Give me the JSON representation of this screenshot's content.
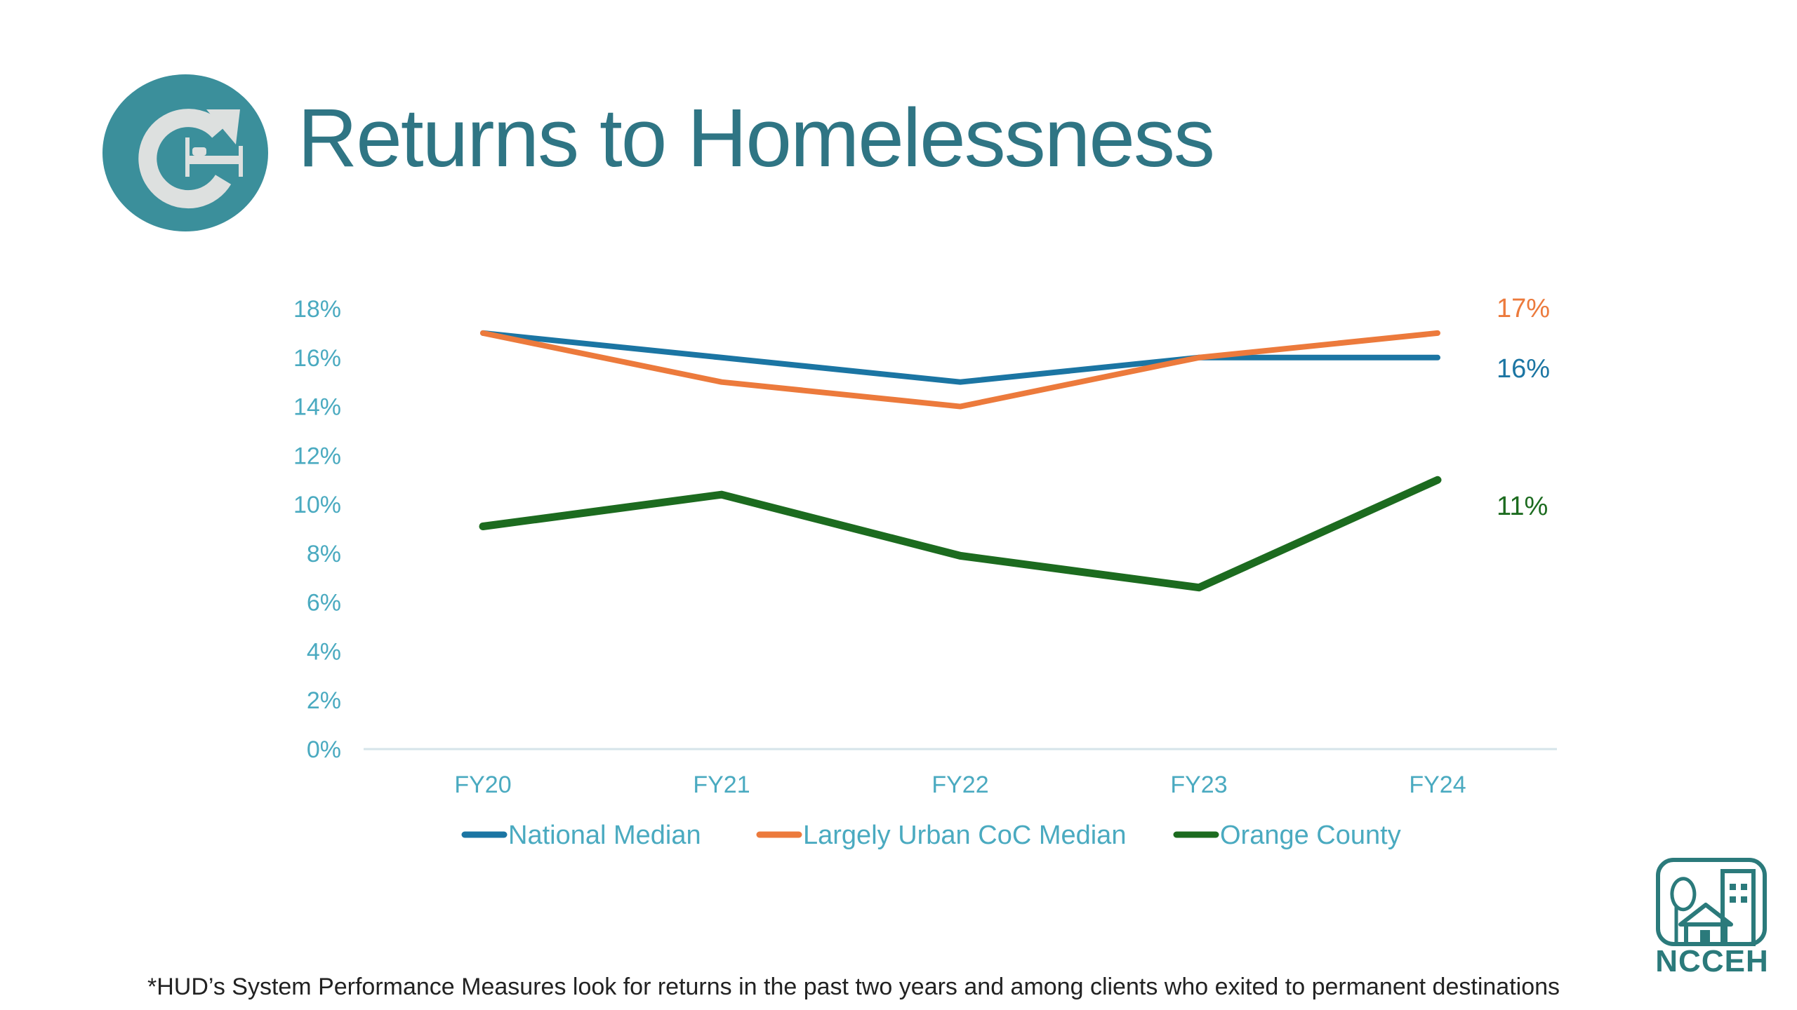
{
  "title": "Returns to Homelessness",
  "icon": "returns-bed-icon",
  "logo": {
    "text": "NCCEH",
    "icon": "house-building-tree-icon"
  },
  "footnote": "*HUD’s System Performance Measures look for returns in the past two years and among clients who exited to permanent destinations",
  "colors": {
    "title": "#2f7584",
    "national": "#1b75a3",
    "urban": "#ec7a3c",
    "orange_county": "#1c6b1f",
    "axis_text": "#4aaac0"
  },
  "chart_data": {
    "type": "line",
    "title": "Returns to Homelessness",
    "categories": [
      "FY20",
      "FY21",
      "FY22",
      "FY23",
      "FY24"
    ],
    "ylim": [
      0,
      18
    ],
    "yticks": [
      "0%",
      "2%",
      "4%",
      "6%",
      "8%",
      "10%",
      "12%",
      "14%",
      "16%",
      "18%"
    ],
    "ytick_values": [
      0,
      2,
      4,
      6,
      8,
      10,
      12,
      14,
      16,
      18
    ],
    "series": [
      {
        "name": "National Median",
        "values": [
          17,
          16,
          15,
          16,
          16
        ],
        "color": "#1b75a3",
        "end_label": "16%"
      },
      {
        "name": "Largely Urban CoC Median",
        "values": [
          17,
          15,
          14,
          16,
          17
        ],
        "color": "#ec7a3c",
        "end_label": "17%"
      },
      {
        "name": "Orange County",
        "values": [
          9.1,
          10.4,
          7.9,
          6.6,
          11
        ],
        "color": "#1c6b1f",
        "end_label": "11%"
      }
    ],
    "legend": "bottom",
    "grid": false
  }
}
